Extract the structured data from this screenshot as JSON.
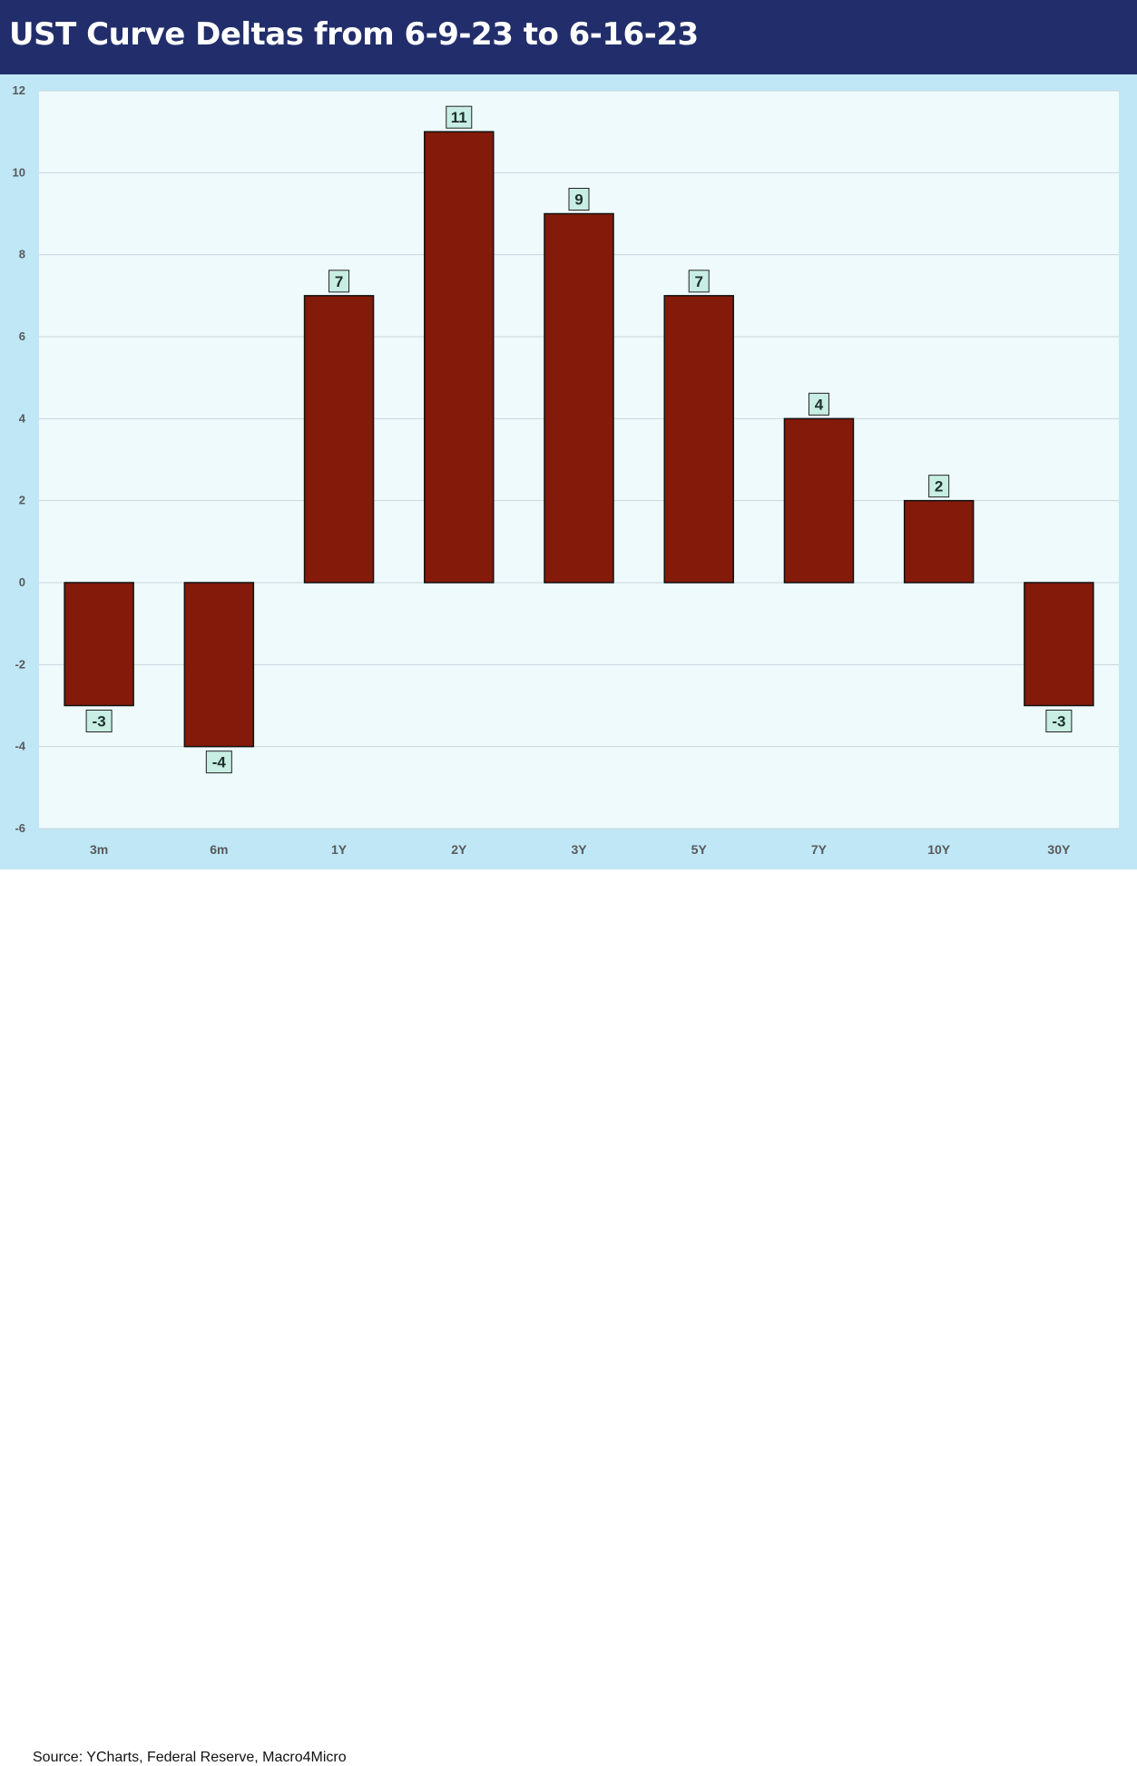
{
  "chart_data": {
    "type": "bar",
    "title": "UST Curve Deltas from 6-9-23 to 6-16-23",
    "categories": [
      "3m",
      "6m",
      "1Y",
      "2Y",
      "3Y",
      "5Y",
      "7Y",
      "10Y",
      "30Y"
    ],
    "values": [
      -3,
      -4,
      7,
      11,
      9,
      7,
      4,
      2,
      -3
    ],
    "ylim": [
      -6,
      12
    ],
    "yticks": [
      12,
      10,
      8,
      6,
      4,
      2,
      0,
      -2,
      -4,
      -6
    ],
    "xlabel": "",
    "ylabel": "",
    "grid": true,
    "bar_color": "#841a0a",
    "plot_background": "#eefafc",
    "label_background": "#c8eee4"
  },
  "source": "Source: YCharts, Federal Reserve, Macro4Micro"
}
